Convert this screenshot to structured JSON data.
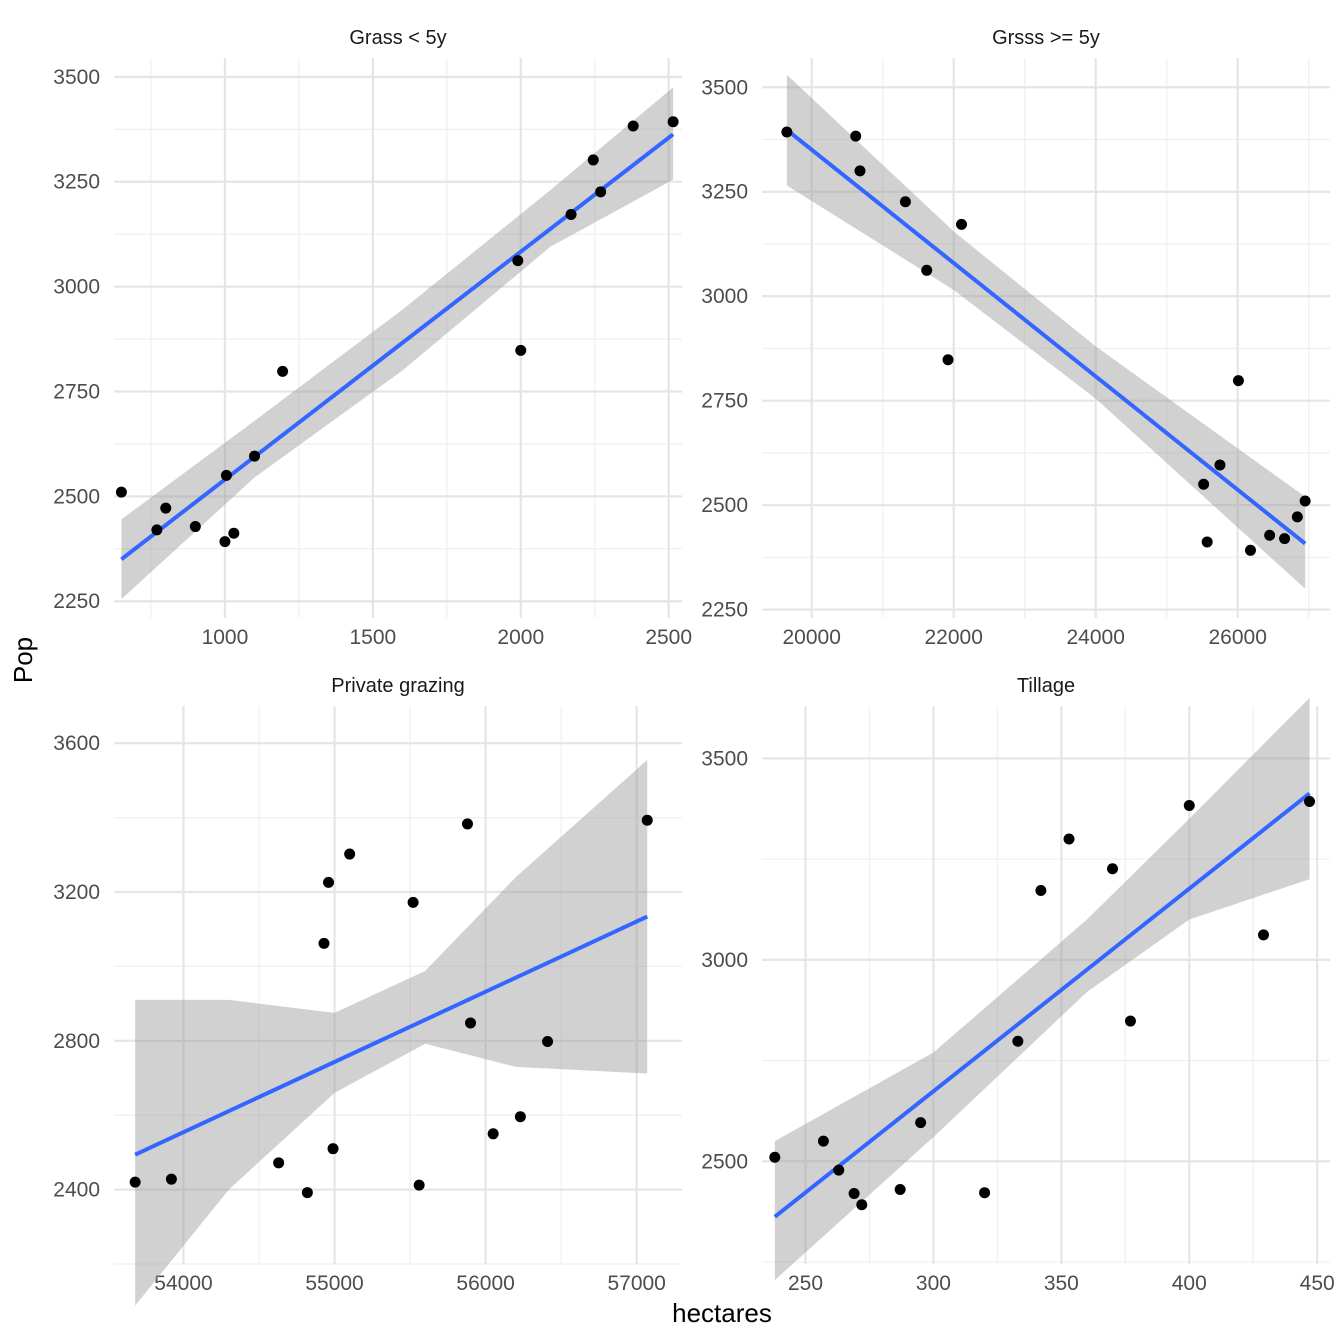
{
  "chart_data": {
    "type": "scatter",
    "xlabel": "hectares",
    "ylabel": "Pop",
    "grid": true,
    "smooth": "linear fit with confidence band",
    "panels": [
      {
        "id": "grass-lt5",
        "title": "Grass < 5y",
        "xlim": [
          625,
          2545
        ],
        "ylim": [
          2210,
          3545
        ],
        "xticks": [
          1000,
          1500,
          2000,
          2500
        ],
        "yticks": [
          2250,
          2500,
          2750,
          3000,
          3250,
          3500
        ],
        "points": [
          [
            650,
            2510
          ],
          [
            770,
            2420
          ],
          [
            800,
            2472
          ],
          [
            900,
            2428
          ],
          [
            1000,
            2392
          ],
          [
            1005,
            2550
          ],
          [
            1030,
            2412
          ],
          [
            1100,
            2596
          ],
          [
            1195,
            2798
          ],
          [
            1990,
            3062
          ],
          [
            2000,
            2848
          ],
          [
            2170,
            3172
          ],
          [
            2245,
            3302
          ],
          [
            2270,
            3226
          ],
          [
            2380,
            3383
          ],
          [
            2515,
            3393
          ]
        ],
        "fit": [
          [
            650,
            2350
          ],
          [
            2515,
            3363
          ]
        ],
        "band": [
          [
            650,
            2255,
            2445
          ],
          [
            1100,
            2545,
            2680
          ],
          [
            1600,
            2800,
            2945
          ],
          [
            2100,
            3095,
            3230
          ],
          [
            2515,
            3255,
            3475
          ]
        ]
      },
      {
        "id": "grass-ge5",
        "title": "Grsss >= 5y",
        "xlim": [
          19300,
          27300
        ],
        "ylim": [
          2230,
          3570
        ],
        "xticks": [
          20000,
          22000,
          24000,
          26000
        ],
        "yticks": [
          2250,
          2500,
          2750,
          3000,
          3250,
          3500
        ],
        "points": [
          [
            19650,
            3393
          ],
          [
            20620,
            3383
          ],
          [
            20680,
            3300
          ],
          [
            21320,
            3226
          ],
          [
            21620,
            3062
          ],
          [
            21920,
            2848
          ],
          [
            22110,
            3172
          ],
          [
            25520,
            2550
          ],
          [
            25570,
            2412
          ],
          [
            25750,
            2596
          ],
          [
            26010,
            2798
          ],
          [
            26180,
            2392
          ],
          [
            26450,
            2428
          ],
          [
            26660,
            2420
          ],
          [
            26840,
            2472
          ],
          [
            26950,
            2510
          ]
        ],
        "fit": [
          [
            19650,
            3398
          ],
          [
            26950,
            2408
          ]
        ],
        "band": [
          [
            19650,
            3265,
            3530
          ],
          [
            22000,
            3015,
            3155
          ],
          [
            24000,
            2755,
            2880
          ],
          [
            26950,
            2300,
            2520
          ]
        ]
      },
      {
        "id": "private-grazing",
        "title": "Private grazing",
        "xlim": [
          53540,
          57300
        ],
        "ylim": [
          2200,
          3700
        ],
        "xticks": [
          54000,
          55000,
          56000,
          57000
        ],
        "yticks": [
          2400,
          2800,
          3200,
          3600
        ],
        "points": [
          [
            53680,
            2420
          ],
          [
            53920,
            2428
          ],
          [
            54630,
            2472
          ],
          [
            54820,
            2392
          ],
          [
            54930,
            3062
          ],
          [
            54960,
            3226
          ],
          [
            54990,
            2510
          ],
          [
            55100,
            3302
          ],
          [
            55520,
            3172
          ],
          [
            55560,
            2412
          ],
          [
            55880,
            3383
          ],
          [
            55900,
            2848
          ],
          [
            56050,
            2550
          ],
          [
            56230,
            2596
          ],
          [
            56410,
            2798
          ],
          [
            57070,
            3393
          ]
        ],
        "fit": [
          [
            53680,
            2494
          ],
          [
            57070,
            3134
          ]
        ],
        "band": [
          [
            53680,
            2088,
            2910
          ],
          [
            54300,
            2400,
            2910
          ],
          [
            55000,
            2660,
            2875
          ],
          [
            55600,
            2792,
            2988
          ],
          [
            56200,
            2730,
            3240
          ],
          [
            57070,
            2712,
            3555
          ]
        ]
      },
      {
        "id": "tillage",
        "title": "Tillage",
        "xlim": [
          233,
          455
        ],
        "ylim": [
          2245,
          3630
        ],
        "xticks": [
          250,
          300,
          350,
          400,
          450
        ],
        "yticks": [
          2500,
          3000,
          3500
        ],
        "points": [
          [
            238,
            2510
          ],
          [
            257,
            2550
          ],
          [
            263,
            2478
          ],
          [
            269,
            2420
          ],
          [
            272,
            2392
          ],
          [
            287,
            2430
          ],
          [
            295,
            2596
          ],
          [
            320,
            2422
          ],
          [
            333,
            2798
          ],
          [
            342,
            3172
          ],
          [
            353,
            3300
          ],
          [
            370,
            3226
          ],
          [
            377,
            2848
          ],
          [
            400,
            3383
          ],
          [
            429,
            3062
          ],
          [
            447,
            3393
          ]
        ],
        "fit": [
          [
            238,
            2362
          ],
          [
            447,
            3413
          ]
        ],
        "band": [
          [
            238,
            2205,
            2550
          ],
          [
            300,
            2560,
            2770
          ],
          [
            360,
            2920,
            3100
          ],
          [
            400,
            3100,
            3350
          ],
          [
            447,
            3200,
            3650
          ]
        ]
      }
    ]
  }
}
